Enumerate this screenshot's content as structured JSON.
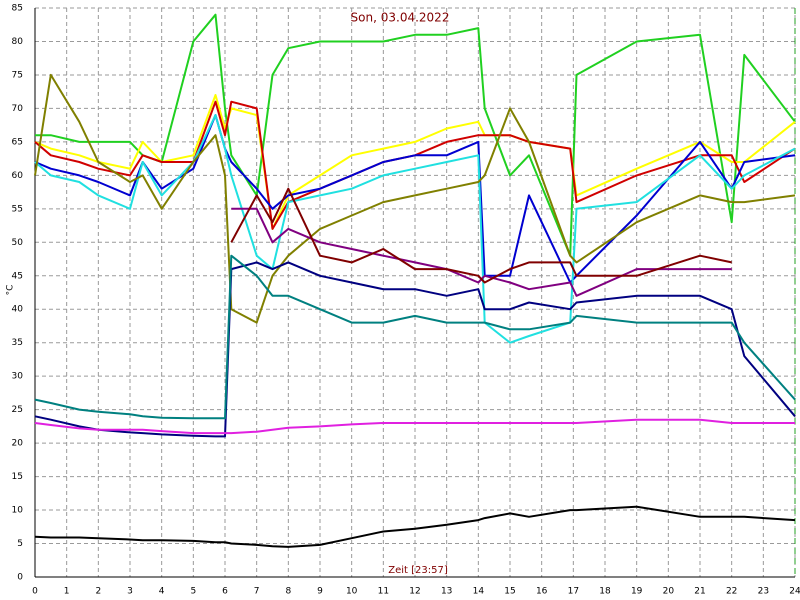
{
  "chart_data": {
    "type": "line",
    "title": "Son, 03.04.2022",
    "x_label": "Zeit [23:57]",
    "y_label": "°C",
    "x": [
      0,
      0.5,
      1.4,
      2,
      3,
      3.4,
      4,
      5,
      5.7,
      6,
      6.2,
      7,
      7.5,
      8,
      9,
      10,
      11,
      12,
      13,
      14,
      14.2,
      15,
      15.6,
      16.9,
      17.1,
      19,
      21,
      22,
      22.4,
      24
    ],
    "xlim": [
      0,
      24
    ],
    "xticks": [
      0,
      1,
      2,
      3,
      4,
      5,
      6,
      7,
      8,
      9,
      10,
      11,
      12,
      13,
      14,
      15,
      16,
      17,
      18,
      19,
      20,
      21,
      22,
      23,
      24
    ],
    "ylim": [
      0,
      85
    ],
    "yticks": [
      0,
      5,
      10,
      15,
      20,
      25,
      30,
      35,
      40,
      45,
      50,
      55,
      60,
      65,
      70,
      75,
      80,
      85
    ],
    "grid": true,
    "series": [
      {
        "color": "#20d020",
        "values": [
          66,
          66,
          65,
          65,
          65,
          63,
          62,
          80,
          84,
          70,
          63,
          57,
          75,
          79,
          80,
          80,
          80,
          81,
          81,
          82,
          70,
          60,
          63,
          48,
          75,
          80,
          81,
          53,
          78,
          68
        ]
      },
      {
        "color": "#ffff00",
        "values": [
          65,
          64,
          63,
          62,
          61,
          65,
          62,
          63,
          72,
          67,
          70,
          69,
          52,
          57,
          60,
          63,
          64,
          65,
          67,
          68,
          66,
          66,
          65,
          64,
          57,
          61,
          65,
          62,
          62,
          68
        ]
      },
      {
        "color": "#d00000",
        "values": [
          65,
          63,
          62,
          61,
          60,
          63,
          62,
          62,
          71,
          66,
          71,
          70,
          52,
          56,
          58,
          60,
          62,
          63,
          65,
          66,
          66,
          66,
          65,
          64,
          56,
          60,
          63,
          63,
          59,
          64
        ]
      },
      {
        "color": "#0000d0",
        "values": [
          62,
          61,
          60,
          59,
          57,
          62,
          58,
          61,
          69,
          64,
          62,
          58,
          55,
          57,
          58,
          60,
          62,
          63,
          63,
          65,
          45,
          45,
          57,
          44,
          45,
          54,
          65,
          58,
          62,
          63
        ]
      },
      {
        "color": "#20e0e0",
        "values": [
          62,
          60,
          59,
          57,
          55,
          62,
          57,
          62,
          69,
          64,
          60,
          48,
          46,
          56,
          57,
          58,
          60,
          61,
          62,
          63,
          38,
          35,
          36,
          38,
          55,
          56,
          63,
          58,
          60,
          64
        ]
      },
      {
        "color": "#808000",
        "values": [
          60,
          75,
          68,
          62,
          59,
          60,
          55,
          62,
          66,
          60,
          40,
          38,
          45,
          48,
          52,
          54,
          56,
          57,
          58,
          59,
          60,
          70,
          65,
          48,
          47,
          53,
          57,
          56,
          56,
          57
        ]
      },
      {
        "color": "#800080",
        "values": [
          null,
          null,
          null,
          null,
          null,
          null,
          null,
          null,
          null,
          null,
          55,
          55,
          50,
          52,
          50,
          49,
          48,
          47,
          46,
          44,
          45,
          44,
          43,
          44,
          42,
          46,
          46,
          46,
          null,
          null
        ]
      },
      {
        "color": "#800000",
        "values": [
          null,
          null,
          null,
          null,
          null,
          null,
          null,
          null,
          null,
          null,
          50,
          57,
          53,
          58,
          48,
          47,
          49,
          46,
          46,
          45,
          44,
          46,
          47,
          47,
          45,
          45,
          48,
          47,
          null,
          null
        ]
      },
      {
        "color": "#000080",
        "values": [
          24,
          23.5,
          22.5,
          22,
          21.6,
          21.5,
          21.3,
          21.1,
          21,
          21,
          46,
          47,
          46,
          47,
          45,
          44,
          43,
          43,
          42,
          43,
          40,
          40,
          41,
          40,
          41,
          42,
          42,
          40,
          33,
          24
        ]
      },
      {
        "color": "#008080",
        "values": [
          26.5,
          26,
          25,
          24.7,
          24.3,
          24,
          23.8,
          23.7,
          23.7,
          23.7,
          48,
          45,
          42,
          42,
          40,
          38,
          38,
          39,
          38,
          38,
          38,
          37,
          37,
          38,
          39,
          38,
          38,
          38,
          35,
          26.5
        ]
      },
      {
        "color": "#e020e0",
        "values": [
          23,
          22.7,
          22.2,
          22,
          22,
          22,
          21.8,
          21.5,
          21.5,
          21.5,
          21.5,
          21.7,
          22,
          22.3,
          22.5,
          22.8,
          23,
          23,
          23,
          23,
          23,
          23,
          23,
          23,
          23,
          23.5,
          23.5,
          23,
          23,
          23
        ]
      },
      {
        "color": "#000000",
        "values": [
          6,
          5.9,
          5.9,
          5.8,
          5.6,
          5.5,
          5.5,
          5.4,
          5.2,
          5.2,
          5,
          4.8,
          4.6,
          4.5,
          4.8,
          5.8,
          6.8,
          7.2,
          7.8,
          8.5,
          8.8,
          9.5,
          9,
          10,
          10,
          10.5,
          9,
          9,
          9,
          8.5
        ]
      }
    ]
  }
}
